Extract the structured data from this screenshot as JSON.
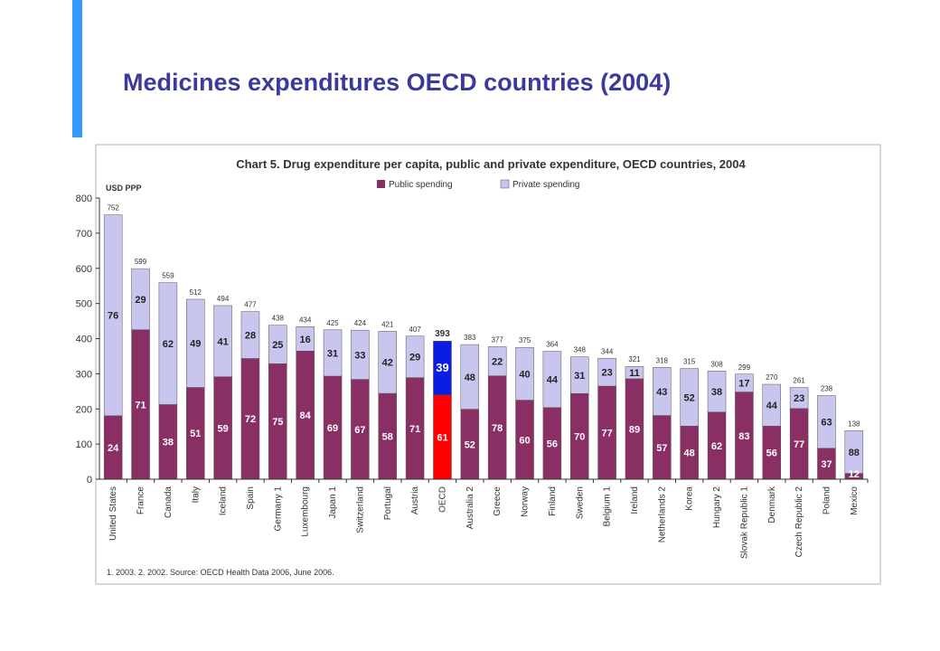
{
  "slide": {
    "title": "Medicines expenditures OECD countries (2004)"
  },
  "colors": {
    "accent": "#3399ff",
    "title": "#3a3a9c",
    "public": "#8a2f63",
    "private": "#c8c6ee",
    "oecd_public": "#ff0000",
    "oecd_private": "#0a1de0"
  },
  "chart_data": {
    "type": "bar",
    "stacked": true,
    "title": "Chart 5. Drug expenditure per capita, public and private expenditure, OECD countries, 2004",
    "ylabel": "USD PPP",
    "xlabel": "",
    "ylim": [
      0,
      800
    ],
    "yticks": [
      0,
      100,
      200,
      300,
      400,
      500,
      600,
      700,
      800
    ],
    "grid": false,
    "legend_position": "top",
    "legend": [
      "Public spending",
      "Private spending"
    ],
    "categories": [
      "United States",
      "France",
      "Canada",
      "Italy",
      "Iceland",
      "Spain",
      "Germany 1",
      "Luxembourg",
      "Japan 1",
      "Switzerland",
      "Portugal",
      "Austria",
      "OECD",
      "Australia 2",
      "Greece",
      "Norway",
      "Finland",
      "Sweden",
      "Belgium 1",
      "Ireland",
      "Netherlands 2",
      "Korea",
      "Hungary 2",
      "Slovak Republic 1",
      "Denmark",
      "Czech Republic 2",
      "Poland",
      "Mexico"
    ],
    "totals": [
      752,
      599,
      559,
      512,
      494,
      477,
      438,
      434,
      425,
      424,
      421,
      407,
      393,
      383,
      377,
      375,
      364,
      348,
      344,
      321,
      318,
      315,
      308,
      299,
      270,
      261,
      238,
      138
    ],
    "series": [
      {
        "name": "Public spending",
        "percent": [
          24,
          71,
          38,
          51,
          59,
          72,
          75,
          84,
          69,
          67,
          58,
          71,
          61,
          52,
          78,
          60,
          56,
          70,
          77,
          89,
          57,
          48,
          62,
          83,
          56,
          77,
          37,
          12
        ]
      },
      {
        "name": "Private spending",
        "percent": [
          76,
          29,
          62,
          49,
          41,
          28,
          25,
          16,
          31,
          33,
          42,
          29,
          39,
          48,
          22,
          40,
          44,
          31,
          23,
          11,
          43,
          52,
          38,
          17,
          44,
          23,
          63,
          88
        ]
      }
    ],
    "highlight_category": "OECD",
    "footnote": "1. 2003.   2. 2002.   Source: OECD Health Data 2006, June 2006."
  }
}
